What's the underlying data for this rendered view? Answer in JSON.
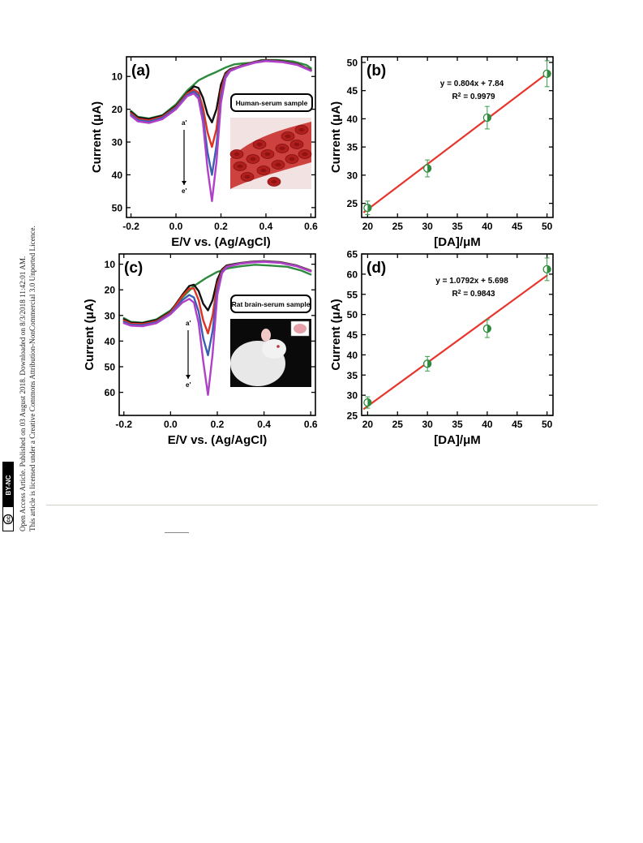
{
  "sidebar": {
    "line1": "Open Access Article. Published on 03 August 2018. Downloaded on 8/3/2018 11:42:01 AM.",
    "line2": "This article is licensed under a Creative Commons Attribution-NonCommercial 3.0 Unported Licence.",
    "badge_cc": "(cc)",
    "badge_text": "BY-NC"
  },
  "chart_data": [
    {
      "panel": "(a)",
      "type": "line",
      "xlabel": "E/V vs. (Ag/AgCl)",
      "ylabel": "Current (μA)",
      "xlim": [
        -0.22,
        0.62
      ],
      "ylim": [
        53,
        4
      ],
      "y_inverted": true,
      "xticks": [
        -0.2,
        0.0,
        0.2,
        0.4,
        0.6
      ],
      "xtick_labels": [
        "-0.2",
        "0.0",
        "0.2",
        "0.4",
        "0.6"
      ],
      "yticks": [
        10,
        20,
        30,
        40,
        50
      ],
      "inset_label": "Human-serum  sample",
      "inset_image": "blood-cells-image",
      "arrow_top": "a'",
      "arrow_bottom": "e'",
      "series": [
        {
          "color": "#2e8b3e",
          "x": [
            -0.2,
            -0.17,
            -0.12,
            -0.06,
            0.0,
            0.05,
            0.1,
            0.14,
            0.18,
            0.22,
            0.26,
            0.3,
            0.34,
            0.38,
            0.45,
            0.52,
            0.58,
            0.6
          ],
          "y": [
            20.5,
            22.3,
            22.8,
            21.8,
            18.5,
            14.3,
            11.2,
            9.8,
            8.6,
            7.3,
            6.3,
            6.0,
            5.8,
            5.0,
            5.0,
            5.4,
            6.5,
            7.5
          ]
        },
        {
          "color": "#111111",
          "x": [
            -0.2,
            -0.17,
            -0.12,
            -0.06,
            0.0,
            0.05,
            0.08,
            0.1,
            0.12,
            0.14,
            0.16,
            0.18,
            0.2,
            0.22,
            0.24,
            0.27,
            0.3,
            0.35,
            0.4,
            0.47,
            0.54,
            0.6
          ],
          "y": [
            20.8,
            22.5,
            23.0,
            22.0,
            19.0,
            15.0,
            13.0,
            13.5,
            16.5,
            21.5,
            24.0,
            20.0,
            12.5,
            9.0,
            7.8,
            7.2,
            6.5,
            5.5,
            5.0,
            5.3,
            6.2,
            8.0
          ]
        },
        {
          "color": "#e03020",
          "x": [
            -0.2,
            -0.17,
            -0.12,
            -0.06,
            0.0,
            0.05,
            0.08,
            0.1,
            0.12,
            0.14,
            0.16,
            0.18,
            0.2,
            0.22,
            0.24,
            0.27,
            0.3,
            0.35,
            0.4,
            0.47,
            0.54,
            0.6
          ],
          "y": [
            21.2,
            22.9,
            23.4,
            22.3,
            19.3,
            15.2,
            14.0,
            15.0,
            19.5,
            27.0,
            31.5,
            26.0,
            14.5,
            9.5,
            8.0,
            7.3,
            6.6,
            5.6,
            5.1,
            5.4,
            6.3,
            8.1
          ]
        },
        {
          "color": "#3a5fb0",
          "x": [
            -0.2,
            -0.17,
            -0.12,
            -0.06,
            0.0,
            0.05,
            0.08,
            0.1,
            0.12,
            0.14,
            0.16,
            0.18,
            0.2,
            0.22,
            0.24,
            0.27,
            0.3,
            0.35,
            0.4,
            0.47,
            0.54,
            0.6
          ],
          "y": [
            21.6,
            23.3,
            23.8,
            22.6,
            19.6,
            15.6,
            14.6,
            15.8,
            22.0,
            33.0,
            40.0,
            31.0,
            16.5,
            10.0,
            8.2,
            7.4,
            6.7,
            5.7,
            5.2,
            5.5,
            6.4,
            8.2
          ]
        },
        {
          "color": "#b040c8",
          "x": [
            -0.2,
            -0.17,
            -0.12,
            -0.06,
            0.0,
            0.05,
            0.08,
            0.1,
            0.12,
            0.14,
            0.16,
            0.18,
            0.2,
            0.22,
            0.24,
            0.27,
            0.3,
            0.35,
            0.4,
            0.47,
            0.54,
            0.6
          ],
          "y": [
            22.0,
            23.7,
            24.2,
            23.0,
            20.0,
            16.0,
            15.2,
            16.8,
            24.0,
            38.0,
            48.0,
            36.0,
            18.0,
            10.5,
            8.4,
            7.5,
            6.8,
            5.8,
            5.3,
            5.6,
            6.5,
            8.3
          ]
        }
      ]
    },
    {
      "panel": "(b)",
      "type": "scatter",
      "xlabel": "[DA]/μM",
      "ylabel": "Current (μA)",
      "xlim": [
        19,
        51
      ],
      "ylim": [
        22.5,
        51
      ],
      "xticks": [
        20,
        25,
        30,
        35,
        40,
        45,
        50
      ],
      "yticks": [
        25,
        30,
        35,
        40,
        45,
        50
      ],
      "equation": "y = 0.804x + 7.84",
      "r2_label": "R",
      "r2_sup": "2",
      "r2_value": " = 0.9979",
      "fit": {
        "slope": 0.804,
        "intercept": 7.84
      },
      "x": [
        20,
        30,
        40,
        50
      ],
      "y": [
        24.2,
        31.2,
        40.2,
        48.0
      ],
      "err": [
        1.2,
        1.5,
        2.0,
        2.3
      ]
    },
    {
      "panel": "(c)",
      "type": "line",
      "xlabel": "E/V vs. (Ag/AgCl)",
      "ylabel": "Current (μA)",
      "xlim": [
        -0.22,
        0.62
      ],
      "ylim": [
        69,
        6
      ],
      "y_inverted": true,
      "xticks": [
        -0.2,
        0.0,
        0.2,
        0.4,
        0.6
      ],
      "xtick_labels": [
        "-0.2",
        "0.0",
        "0.2",
        "0.4",
        "0.6"
      ],
      "yticks": [
        10,
        20,
        30,
        40,
        50,
        60
      ],
      "inset_label": "Rat brain-serum  sample",
      "inset_image": "rat-image",
      "arrow_top": "a'",
      "arrow_bottom": "e'",
      "series": [
        {
          "color": "#2e8b3e",
          "x": [
            -0.2,
            -0.17,
            -0.12,
            -0.06,
            0.0,
            0.05,
            0.1,
            0.15,
            0.2,
            0.25,
            0.3,
            0.36,
            0.42,
            0.5,
            0.56,
            0.6
          ],
          "y": [
            31.0,
            32.5,
            32.8,
            31.5,
            28.0,
            23.0,
            18.5,
            15.5,
            13.0,
            11.5,
            10.8,
            10.2,
            10.5,
            11.0,
            12.5,
            14.0
          ]
        },
        {
          "color": "#111111",
          "x": [
            -0.2,
            -0.17,
            -0.12,
            -0.06,
            0.0,
            0.05,
            0.08,
            0.1,
            0.12,
            0.14,
            0.16,
            0.18,
            0.2,
            0.22,
            0.24,
            0.27,
            0.3,
            0.35,
            0.4,
            0.47,
            0.54,
            0.6
          ],
          "y": [
            31.5,
            32.8,
            33.0,
            31.8,
            28.5,
            22.0,
            18.5,
            18.0,
            20.5,
            25.5,
            28.0,
            24.0,
            16.0,
            12.0,
            10.5,
            10.0,
            9.5,
            9.0,
            8.8,
            9.2,
            10.5,
            12.5
          ]
        },
        {
          "color": "#e03020",
          "x": [
            -0.2,
            -0.17,
            -0.12,
            -0.06,
            0.0,
            0.05,
            0.08,
            0.1,
            0.12,
            0.14,
            0.16,
            0.18,
            0.2,
            0.22,
            0.24,
            0.27,
            0.3,
            0.35,
            0.4,
            0.47,
            0.54,
            0.6
          ],
          "y": [
            32.0,
            33.2,
            33.4,
            32.2,
            28.8,
            22.5,
            19.5,
            19.5,
            24.0,
            32.0,
            37.0,
            30.0,
            18.0,
            12.5,
            10.8,
            10.2,
            9.6,
            9.1,
            8.9,
            9.3,
            10.6,
            12.6
          ]
        },
        {
          "color": "#3a5fb0",
          "x": [
            -0.2,
            -0.17,
            -0.12,
            -0.06,
            0.0,
            0.05,
            0.08,
            0.1,
            0.12,
            0.14,
            0.16,
            0.18,
            0.2,
            0.22,
            0.24,
            0.27,
            0.3,
            0.35,
            0.4,
            0.47,
            0.54,
            0.6
          ],
          "y": [
            32.5,
            33.6,
            33.8,
            32.6,
            29.2,
            24.0,
            22.0,
            23.0,
            28.5,
            39.0,
            45.5,
            36.0,
            20.0,
            13.0,
            11.0,
            10.3,
            9.7,
            9.2,
            9.0,
            9.4,
            10.7,
            12.7
          ]
        },
        {
          "color": "#b040c8",
          "x": [
            -0.2,
            -0.17,
            -0.12,
            -0.06,
            0.0,
            0.05,
            0.08,
            0.1,
            0.12,
            0.14,
            0.16,
            0.18,
            0.2,
            0.22,
            0.24,
            0.27,
            0.3,
            0.35,
            0.4,
            0.47,
            0.54,
            0.6
          ],
          "y": [
            33.0,
            34.0,
            34.2,
            33.0,
            29.5,
            25.0,
            23.5,
            25.0,
            33.0,
            48.0,
            61.0,
            45.0,
            22.0,
            13.5,
            11.2,
            10.4,
            9.8,
            9.3,
            9.1,
            9.5,
            10.8,
            12.8
          ]
        }
      ]
    },
    {
      "panel": "(d)",
      "type": "scatter",
      "xlabel": "[DA]/μM",
      "ylabel": "Current (μA)",
      "xlim": [
        19,
        51
      ],
      "ylim": [
        25,
        65
      ],
      "xticks": [
        20,
        25,
        30,
        35,
        40,
        45,
        50
      ],
      "yticks": [
        25,
        30,
        35,
        40,
        45,
        50,
        55,
        60,
        65
      ],
      "equation": "y = 1.0792x + 5.698",
      "r2_label": "R",
      "r2_sup": "2",
      "r2_value": " = 0.9843",
      "fit": {
        "slope": 1.0792,
        "intercept": 5.698
      },
      "x": [
        20,
        30,
        40,
        50
      ],
      "y": [
        28.2,
        37.8,
        46.5,
        61.2
      ],
      "err": [
        1.4,
        1.8,
        2.2,
        2.8
      ]
    }
  ]
}
